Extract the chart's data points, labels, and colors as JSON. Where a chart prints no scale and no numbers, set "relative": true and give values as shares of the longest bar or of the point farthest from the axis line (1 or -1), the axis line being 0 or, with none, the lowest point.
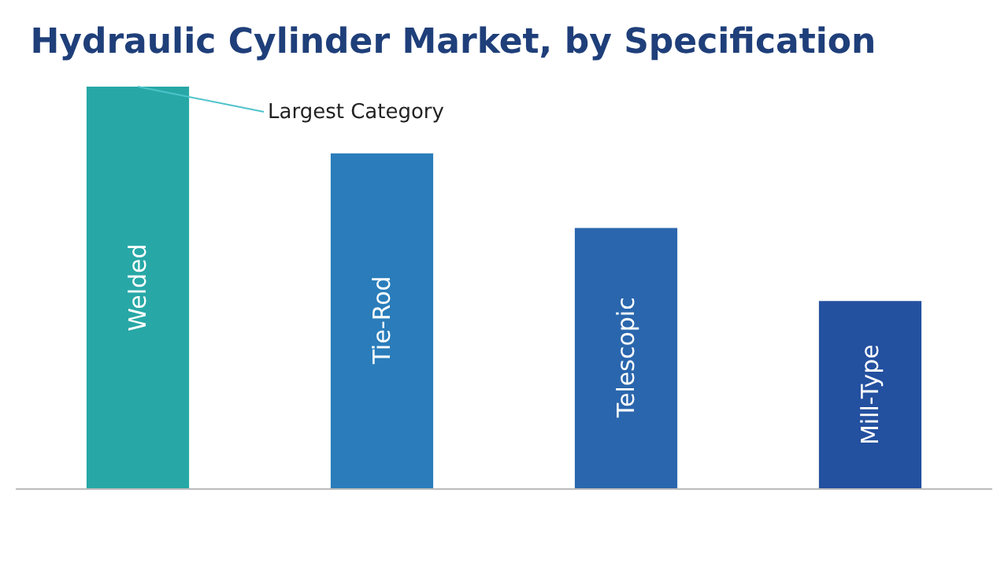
{
  "chart_data": {
    "type": "bar",
    "title": "Hydraulic Cylinder Market, by Specification",
    "relative": true,
    "categories": [
      "Welded",
      "Tie-Rod",
      "Telescopic",
      "Mill-Type"
    ],
    "values": [
      1,
      0.834,
      0.648,
      0.466
    ],
    "colors": [
      "#27a8a6",
      "#2a7dba",
      "#2a66ad",
      "#23509f"
    ],
    "annotations": [
      {
        "text": "Largest Category",
        "x": "Welded",
        "y": 1
      }
    ],
    "tick_labels": false
  }
}
